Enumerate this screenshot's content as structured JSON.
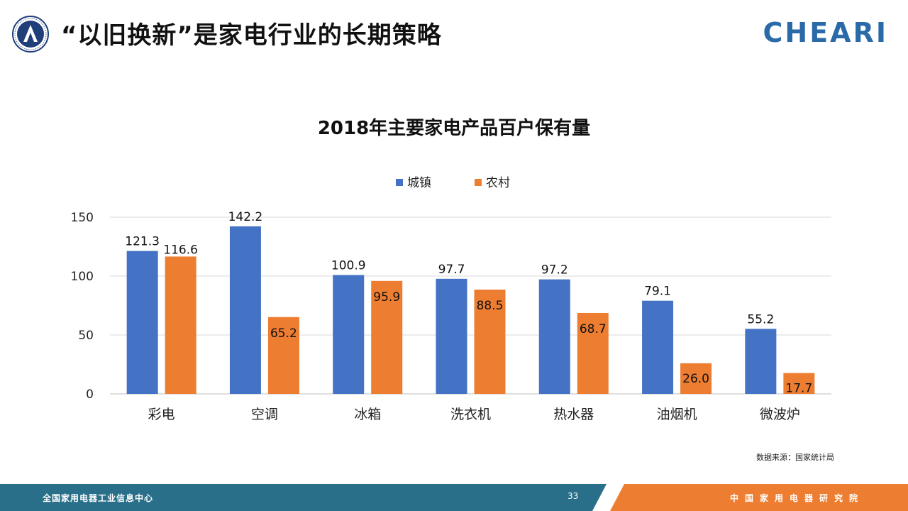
{
  "header": {
    "title": "“以旧换新”是家电行业的长期策略",
    "brand": "CHEARI"
  },
  "colors": {
    "urban": "#4472c4",
    "rural": "#ed7d31",
    "footer_left": "#2a6f8a",
    "footer_right": "#ed7d31"
  },
  "chart_data": {
    "type": "bar",
    "title": "2018年主要家电产品百户保有量",
    "categories": [
      "彩电",
      "空调",
      "冰箱",
      "洗衣机",
      "热水器",
      "油烟机",
      "微波炉"
    ],
    "series": [
      {
        "name": "城镇",
        "values": [
          121.3,
          142.2,
          100.9,
          97.7,
          97.2,
          79.1,
          55.2
        ]
      },
      {
        "name": "农村",
        "values": [
          116.6,
          65.2,
          95.9,
          88.5,
          68.7,
          26.0,
          17.7
        ]
      }
    ],
    "yticks": [
      0,
      50,
      100,
      150
    ],
    "ylim": [
      0,
      150
    ],
    "grid": true,
    "legend": "top-center"
  },
  "source_note": "数据来源：国家统计局",
  "footer": {
    "left_text": "全国家用电器工业信息中心",
    "page_number": "33",
    "right_text": "中国家用电器研究院"
  }
}
